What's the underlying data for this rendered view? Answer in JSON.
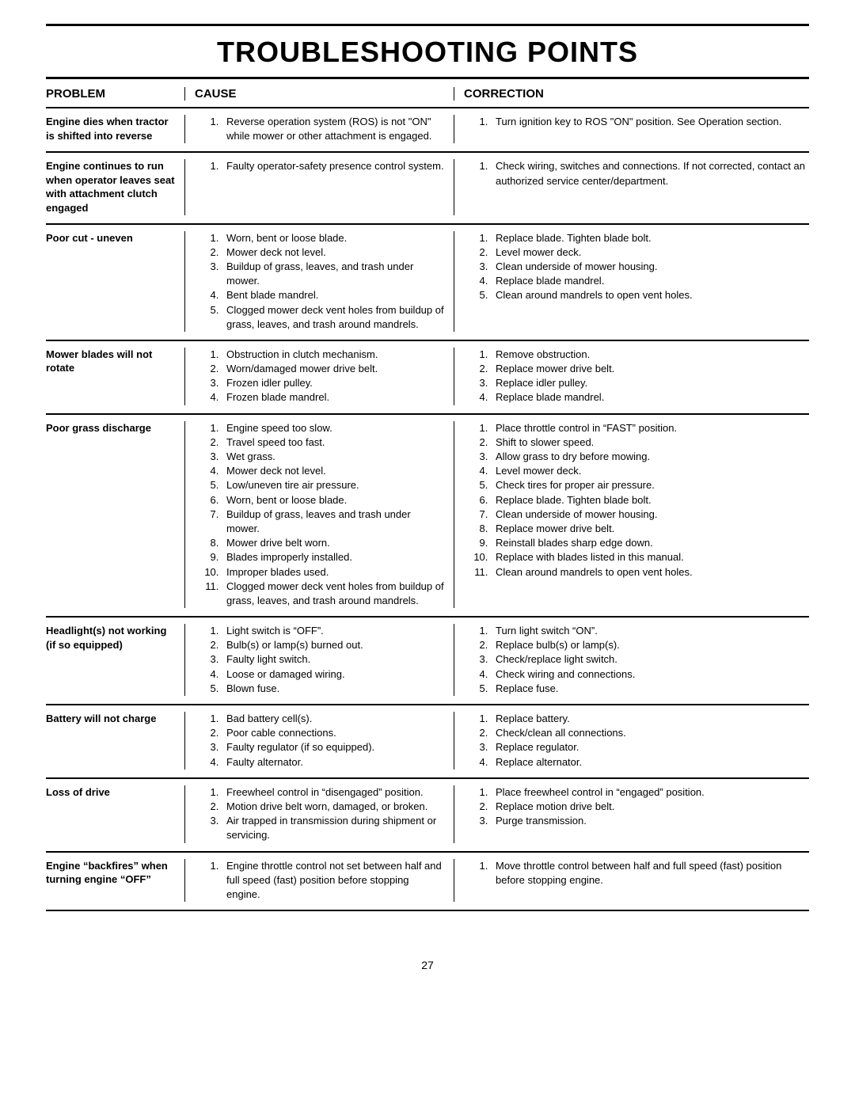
{
  "title": "TROUBLESHOOTING POINTS",
  "columns": {
    "problem": "PROBLEM",
    "cause": "CAUSE",
    "correction": "CORRECTION"
  },
  "page_number": "27",
  "rows": [
    {
      "problem": "Engine dies when tractor is shifted into reverse",
      "causes": [
        "Reverse operation system (ROS) is not \"ON\" while mower or other attachment is engaged."
      ],
      "corrections": [
        "Turn ignition key to ROS \"ON\" position. See Operation section."
      ]
    },
    {
      "problem": "Engine continues to run when operator leaves seat with attachment clutch engaged",
      "causes": [
        "Faulty operator-safety presence control system."
      ],
      "corrections": [
        "Check wiring, switches  and connections.  If not corrected, contact an authorized service center/department."
      ]
    },
    {
      "problem": "Poor cut - uneven",
      "causes": [
        "Worn, bent or loose blade.",
        "Mower deck not level.",
        "Buildup of grass, leaves, and trash under mower.",
        "Bent blade mandrel.",
        "Clogged mower deck vent holes from buildup of grass, leaves, and trash around mandrels."
      ],
      "corrections": [
        "Replace blade.  Tighten blade bolt.",
        "Level mower deck.",
        "Clean underside of mower housing.",
        "Replace blade mandrel.",
        "Clean around mandrels to open vent holes."
      ]
    },
    {
      "problem": "Mower blades will not rotate",
      "causes": [
        "Obstruction in clutch mechanism.",
        "Worn/damaged mower drive belt.",
        "Frozen idler pulley.",
        "Frozen blade mandrel."
      ],
      "corrections": [
        "Remove obstruction.",
        "Replace mower drive belt.",
        "Replace idler pulley.",
        "Replace blade mandrel."
      ]
    },
    {
      "problem": "Poor grass discharge",
      "causes": [
        "Engine speed too slow.",
        "Travel speed too fast.",
        "Wet grass.",
        "Mower deck not level.",
        "Low/uneven tire air pressure.",
        "Worn, bent or loose blade.",
        "Buildup of grass, leaves and trash under mower.",
        "Mower drive belt worn.",
        "Blades improperly installed.",
        "Improper blades used.",
        "Clogged mower deck vent holes from buildup of grass, leaves, and trash around mandrels."
      ],
      "corrections": [
        "Place throttle control in “FAST” position.",
        "Shift to slower speed.",
        "Allow grass to dry before mowing.",
        "Level mower deck.",
        "Check tires for proper air pressure.",
        "Replace blade.  Tighten blade bolt.",
        "Clean underside of mower housing.",
        "Replace mower drive belt.",
        "Reinstall blades sharp edge down.",
        "Replace with blades listed in this manual.",
        "Clean around mandrels to open vent holes."
      ]
    },
    {
      "problem": "Headlight(s) not working (if so equipped)",
      "causes": [
        "Light switch is “OFF”.",
        "Bulb(s) or lamp(s) burned out.",
        "Faulty light switch.",
        "Loose or damaged wiring.",
        "Blown fuse."
      ],
      "corrections": [
        "Turn light switch “ON”.",
        "Replace bulb(s) or lamp(s).",
        "Check/replace light switch.",
        "Check wiring and connections.",
        "Replace fuse."
      ]
    },
    {
      "problem": "Battery will not charge",
      "causes": [
        "Bad battery cell(s).",
        "Poor cable connections.",
        "Faulty regulator (if so equipped).",
        "Faulty alternator."
      ],
      "corrections": [
        "Replace battery.",
        "Check/clean all connections.",
        "Replace regulator.",
        "Replace alternator."
      ]
    },
    {
      "problem": "Loss of drive",
      "causes": [
        "Freewheel control in “disengaged” position.",
        "Motion drive belt worn, damaged, or broken.",
        "Air trapped in transmission during shipment or servicing."
      ],
      "corrections": [
        "Place freewheel control in “engaged” position.",
        "Replace motion drive belt.",
        "Purge transmission."
      ]
    },
    {
      "problem": "Engine “backfires” when turning engine “OFF”",
      "causes": [
        "Engine throttle control not set between half and full speed (fast) position before stopping engine."
      ],
      "corrections": [
        "Move throttle control between half and full speed (fast) position before stopping engine."
      ]
    }
  ]
}
